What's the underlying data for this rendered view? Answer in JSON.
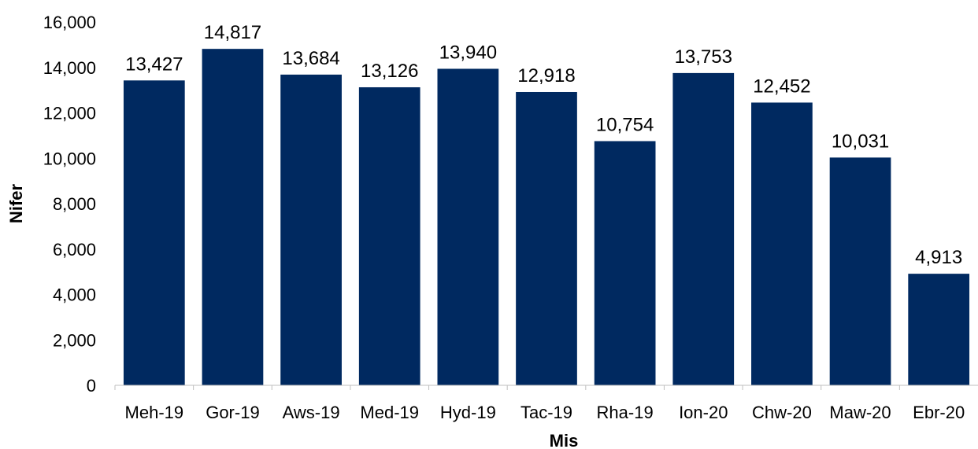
{
  "chart_data": {
    "type": "bar",
    "title": "",
    "xlabel": "Mis",
    "ylabel": "Nifer",
    "categories": [
      "Meh-19",
      "Gor-19",
      "Aws-19",
      "Med-19",
      "Hyd-19",
      "Tac-19",
      "Rha-19",
      "Ion-20",
      "Chw-20",
      "Maw-20",
      "Ebr-20"
    ],
    "values": [
      13427,
      14817,
      13684,
      13126,
      13940,
      12918,
      10754,
      13753,
      12452,
      10031,
      4913
    ],
    "value_labels": [
      "13,427",
      "14,817",
      "13,684",
      "13,126",
      "13,940",
      "12,918",
      "10,754",
      "13,753",
      "12,452",
      "10,031",
      "4,913"
    ],
    "ylim": [
      0,
      16000
    ],
    "yticks": [
      0,
      2000,
      4000,
      6000,
      8000,
      10000,
      12000,
      14000,
      16000
    ],
    "ytick_labels": [
      "0",
      "2,000",
      "4,000",
      "6,000",
      "8,000",
      "10,000",
      "12,000",
      "14,000",
      "16,000"
    ],
    "grid": false,
    "legend": "none",
    "bar_color": "#002960"
  }
}
